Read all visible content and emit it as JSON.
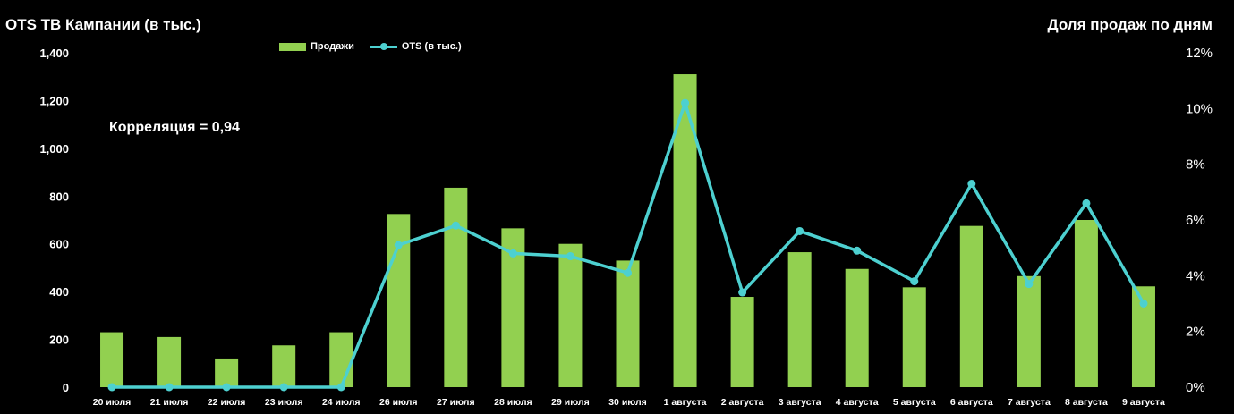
{
  "chart_data": {
    "type": "bar",
    "title": "OTS ТВ Кампании (в тыс.)",
    "right_title": "Доля продаж по дням",
    "annotation": "Корреляция = 0,94",
    "categories": [
      "20 июля",
      "21 июля",
      "22 июля",
      "23 июля",
      "24 июля",
      "26 июля",
      "27 июля",
      "28 июля",
      "29 июля",
      "30 июля",
      "1 августа",
      "2 августа",
      "3 августа",
      "4 августа",
      "5 августа",
      "6 августа",
      "7 августа",
      "8 августа",
      "9 августа"
    ],
    "series": [
      {
        "name": "Продажи",
        "type": "bar",
        "axis": "left",
        "color": "#92d050",
        "values": [
          230,
          210,
          120,
          175,
          230,
          725,
          835,
          665,
          600,
          530,
          1310,
          378,
          565,
          495,
          418,
          675,
          465,
          700,
          422
        ]
      },
      {
        "name": "OTS (в тыс.)",
        "type": "line",
        "axis": "right",
        "color": "#4dd0d0",
        "values": [
          0,
          0,
          0,
          0,
          0,
          5.1,
          5.8,
          4.8,
          4.7,
          4.1,
          10.2,
          3.4,
          5.6,
          4.9,
          3.8,
          7.3,
          3.7,
          6.6,
          3.0
        ]
      }
    ],
    "ylim": [
      0,
      1400
    ],
    "yticks": [
      "1,400",
      "1,200",
      "1,000",
      "800",
      "600",
      "400",
      "200",
      "0"
    ],
    "y2lim": [
      0,
      12
    ],
    "y2ticks": [
      "12%",
      "10%",
      "8%",
      "6%",
      "4%",
      "2%",
      "0%"
    ],
    "legend_position": "top-center",
    "grid": false
  }
}
